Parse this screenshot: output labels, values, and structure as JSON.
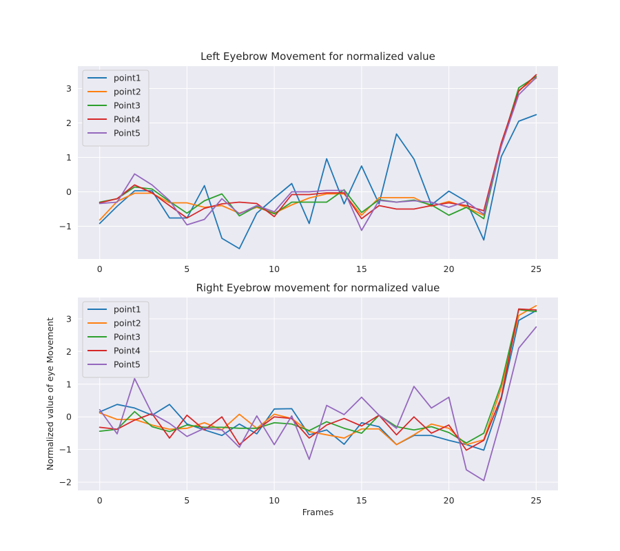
{
  "chart_data": [
    {
      "type": "line",
      "title": "Left Eyebrow Movement for normalized value",
      "xlabel": "",
      "ylabel": "",
      "xlim": [
        -1.25,
        26.25
      ],
      "ylim": [
        -1.95,
        3.65
      ],
      "xticks": [
        0,
        5,
        10,
        15,
        20,
        25
      ],
      "yticks": [
        -1,
        0,
        1,
        2,
        3
      ],
      "grid": true,
      "legend": "top-left",
      "series": [
        {
          "name": "point1",
          "color": "#1f77b4",
          "values": [
            -0.92,
            -0.42,
            0.03,
            0.03,
            -0.76,
            -0.76,
            0.18,
            -1.35,
            -1.65,
            -0.62,
            -0.18,
            0.24,
            -0.92,
            0.96,
            -0.35,
            0.75,
            -0.35,
            1.68,
            0.95,
            -0.38,
            0.02,
            -0.28,
            -1.4,
            1.02,
            2.05,
            2.24
          ]
        },
        {
          "name": "point2",
          "color": "#ff7f0e",
          "values": [
            -0.82,
            -0.28,
            -0.04,
            -0.04,
            -0.32,
            -0.32,
            -0.45,
            -0.4,
            -0.62,
            -0.45,
            -0.62,
            -0.38,
            -0.18,
            -0.06,
            -0.06,
            -0.68,
            -0.17,
            -0.17,
            -0.17,
            -0.42,
            -0.28,
            -0.45,
            -0.68,
            1.35,
            2.95,
            3.3
          ]
        },
        {
          "name": "Point3",
          "color": "#2ca02c",
          "values": [
            -0.3,
            -0.2,
            0.14,
            0.08,
            -0.28,
            -0.62,
            -0.26,
            -0.06,
            -0.7,
            -0.42,
            -0.64,
            -0.3,
            -0.3,
            -0.3,
            0.06,
            -0.6,
            -0.23,
            -0.3,
            -0.24,
            -0.38,
            -0.68,
            -0.45,
            -0.78,
            1.35,
            3.02,
            3.35
          ]
        },
        {
          "name": "Point4",
          "color": "#d62728",
          "values": [
            -0.32,
            -0.2,
            0.2,
            -0.03,
            -0.4,
            -0.76,
            -0.48,
            -0.35,
            -0.3,
            -0.34,
            -0.72,
            -0.08,
            -0.08,
            -0.03,
            -0.03,
            -0.78,
            -0.4,
            -0.5,
            -0.5,
            -0.4,
            -0.32,
            -0.4,
            -0.55,
            1.42,
            2.92,
            3.4
          ]
        },
        {
          "name": "Point5",
          "color": "#9467bd",
          "values": [
            -0.34,
            -0.3,
            0.52,
            0.2,
            -0.25,
            -0.96,
            -0.8,
            -0.2,
            -0.64,
            -0.4,
            -0.58,
            0.0,
            0.0,
            0.04,
            0.04,
            -1.12,
            -0.25,
            -0.3,
            -0.26,
            -0.3,
            -0.45,
            -0.28,
            -0.65,
            1.32,
            2.82,
            3.32
          ]
        }
      ]
    },
    {
      "type": "line",
      "title": "Right Eyebrow movement for normalized value",
      "xlabel": "Frames",
      "ylabel": "Normalized value of eye Movement",
      "xlim": [
        -1.25,
        26.25
      ],
      "ylim": [
        -2.25,
        3.65
      ],
      "xticks": [
        0,
        5,
        10,
        15,
        20,
        25
      ],
      "yticks": [
        -2,
        -1,
        0,
        1,
        2,
        3
      ],
      "grid": true,
      "legend": "top-left",
      "series": [
        {
          "name": "point1",
          "color": "#1f77b4",
          "values": [
            0.15,
            0.38,
            0.27,
            0.05,
            0.38,
            -0.22,
            -0.4,
            -0.57,
            -0.22,
            -0.52,
            0.24,
            0.25,
            -0.55,
            -0.4,
            -0.84,
            -0.18,
            -0.3,
            -0.85,
            -0.57,
            -0.57,
            -0.72,
            -0.85,
            -1.02,
            0.55,
            2.95,
            3.25
          ]
        },
        {
          "name": "point2",
          "color": "#ff7f0e",
          "values": [
            0.12,
            -0.08,
            -0.08,
            -0.25,
            -0.38,
            -0.35,
            -0.18,
            -0.4,
            0.08,
            -0.35,
            0.08,
            -0.05,
            -0.45,
            -0.55,
            -0.65,
            -0.37,
            -0.37,
            -0.85,
            -0.55,
            -0.22,
            -0.35,
            -0.85,
            -0.7,
            0.88,
            3.1,
            3.4
          ]
        },
        {
          "name": "Point3",
          "color": "#2ca02c",
          "values": [
            -0.44,
            -0.38,
            0.16,
            -0.3,
            -0.45,
            -0.25,
            -0.32,
            -0.32,
            -0.35,
            -0.35,
            -0.18,
            -0.22,
            -0.42,
            -0.15,
            -0.35,
            -0.5,
            0.05,
            -0.3,
            -0.4,
            -0.3,
            -0.48,
            -0.8,
            -0.5,
            1.0,
            3.28,
            3.22
          ]
        },
        {
          "name": "Point4",
          "color": "#d62728",
          "values": [
            -0.32,
            -0.38,
            -0.1,
            0.1,
            -0.65,
            0.05,
            -0.4,
            0.0,
            -0.85,
            -0.4,
            0.0,
            -0.05,
            -0.65,
            -0.25,
            -0.05,
            -0.28,
            0.05,
            -0.55,
            0.0,
            -0.5,
            -0.25,
            -1.02,
            -0.72,
            0.6,
            3.3,
            3.27
          ]
        },
        {
          "name": "Point5",
          "color": "#9467bd",
          "values": [
            0.22,
            -0.52,
            1.17,
            0.1,
            -0.2,
            -0.6,
            -0.35,
            -0.4,
            -0.93,
            0.03,
            -0.85,
            0.03,
            -1.3,
            0.35,
            0.07,
            0.6,
            0.05,
            -0.35,
            0.93,
            0.27,
            0.6,
            -1.62,
            -1.95,
            -0.05,
            2.1,
            2.75
          ]
        }
      ]
    }
  ]
}
